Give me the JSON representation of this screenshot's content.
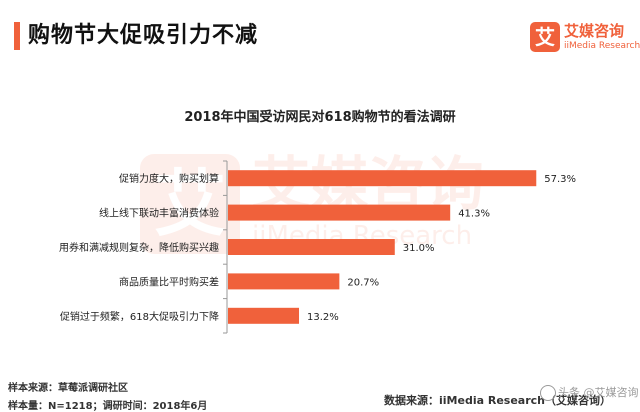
{
  "header": {
    "title": "购物节大促吸引力不减"
  },
  "brand": {
    "mark": "艾",
    "name_cn": "艾媒咨询",
    "name_en": "iiMedia Research",
    "color": "#f0613b"
  },
  "footer": {
    "sample_source": "样本来源：草莓派调研社区",
    "sample_size": "样本量：N=1218；调研时间：2018年6月",
    "data_source": "数据来源：iiMedia Research（艾媒咨询）",
    "credit": "头条 @艾媒咨询"
  },
  "chart_data": {
    "type": "bar",
    "orientation": "horizontal",
    "title": "2018年中国受访网民对618购物节的看法调研",
    "categories": [
      "促销力度大，购买划算",
      "线上线下联动丰富消费体验",
      "用券和满减规则复杂，降低购买兴趣",
      "商品质量比平时购买差",
      "促销过于频繁，618大促吸引力下降"
    ],
    "values": [
      57.3,
      41.3,
      31.0,
      20.7,
      13.2
    ],
    "value_labels": [
      "57.3%",
      "41.3%",
      "31.0%",
      "20.7%",
      "13.2%"
    ],
    "xlim": [
      0,
      60
    ],
    "bar_color": "#f0613b",
    "grid": false,
    "legend": "none"
  }
}
